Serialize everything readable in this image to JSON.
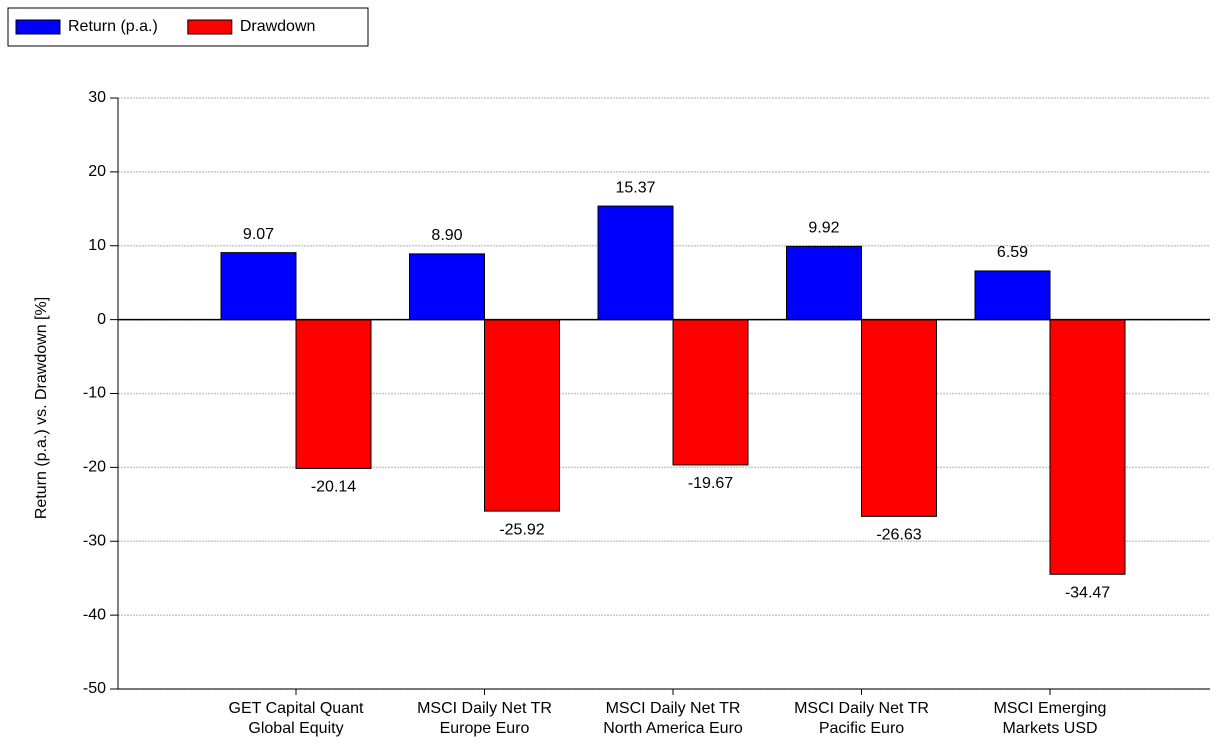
{
  "chart_data": {
    "type": "bar",
    "ylabel": "Return (p.a.) vs. Drawdown [%]",
    "categories": [
      "GET Capital Quant\nGlobal Equity",
      "MSCI Daily Net TR\nEurope Euro",
      "MSCI Daily Net TR\nNorth America Euro",
      "MSCI Daily Net TR\nPacific Euro",
      "MSCI Emerging\nMarkets USD"
    ],
    "series": [
      {
        "name": "Return (p.a.)",
        "color": "#0000ff",
        "values": [
          9.07,
          8.9,
          15.37,
          9.92,
          6.59
        ],
        "value_labels": [
          "9.07",
          "8.90",
          "15.37",
          "9.92",
          "6.59"
        ]
      },
      {
        "name": "Drawdown",
        "color": "#ff0000",
        "values": [
          -20.14,
          -25.92,
          -19.67,
          -26.63,
          -34.47
        ]
      }
    ],
    "ylim": [
      -50,
      30
    ],
    "yticks": [
      -50,
      -40,
      -30,
      -20,
      -10,
      0,
      10,
      20,
      30
    ],
    "grid": true,
    "legend": "top-left"
  }
}
